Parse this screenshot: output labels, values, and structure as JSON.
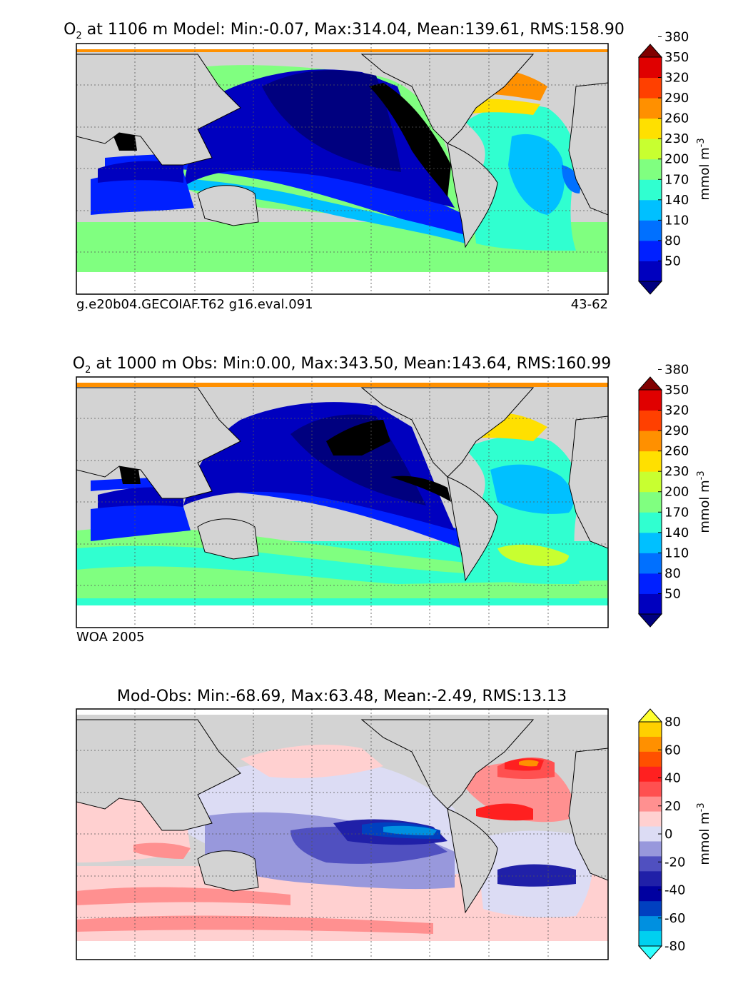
{
  "panels": [
    {
      "title_o": "O",
      "title_sub": "2",
      "title_rest": " at 1106 m Model: Min:-0.07, Max:314.04, Mean:139.61, RMS:158.90",
      "footer_left": "g.e20b04.GECOIAF.T62 g16.eval.091",
      "footer_right": "43-62"
    },
    {
      "title_o": "O",
      "title_sub": "2",
      "title_rest": " at 1000 m Obs: Min:0.00, Max:343.50, Mean:143.64, RMS:160.99",
      "footer_left": "WOA 2005",
      "footer_right": ""
    },
    {
      "title_o": "",
      "title_sub": "",
      "title_rest": "Mod-Obs: Min:-68.69, Max:63.48, Mean:-2.49, RMS:13.13",
      "footer_left": "",
      "footer_right": ""
    }
  ],
  "chart_data": [
    {
      "type": "heatmap",
      "title": "O2 at 1106 m Model: Min:-0.07, Max:314.04, Mean:139.61, RMS:158.90",
      "colorbar": {
        "label": "mmol m^-3",
        "ticks": [
          "50",
          "80",
          "110",
          "140",
          "170",
          "200",
          "230",
          "260",
          "290",
          "320",
          "350",
          "380"
        ],
        "colors": [
          "#00007f",
          "#0000bf",
          "#0020ff",
          "#0070ff",
          "#00c0ff",
          "#30ffd0",
          "#80ff80",
          "#c8ff30",
          "#ffe000",
          "#ff9000",
          "#ff4000",
          "#e00000",
          "#800000"
        ],
        "extend": "both"
      },
      "stats": {
        "min": -0.07,
        "max": 314.04,
        "mean": 139.61,
        "rms": 158.9
      }
    },
    {
      "type": "heatmap",
      "title": "O2 at 1000 m Obs: Min:0.00, Max:343.50, Mean:143.64, RMS:160.99",
      "colorbar": {
        "label": "mmol m^-3",
        "ticks": [
          "50",
          "80",
          "110",
          "140",
          "170",
          "200",
          "230",
          "260",
          "290",
          "320",
          "350",
          "380"
        ],
        "colors": [
          "#00007f",
          "#0000bf",
          "#0020ff",
          "#0070ff",
          "#00c0ff",
          "#30ffd0",
          "#80ff80",
          "#c8ff30",
          "#ffe000",
          "#ff9000",
          "#ff4000",
          "#e00000",
          "#800000"
        ],
        "extend": "both"
      },
      "stats": {
        "min": 0.0,
        "max": 343.5,
        "mean": 143.64,
        "rms": 160.99
      }
    },
    {
      "type": "heatmap",
      "title": "Mod-Obs: Min:-68.69, Max:63.48, Mean:-2.49, RMS:13.13",
      "colorbar": {
        "label": "mmol m^-3",
        "ticks": [
          "80",
          "60",
          "40",
          "20",
          "0",
          "-20",
          "-40",
          "-60",
          "-80"
        ],
        "colors": [
          "#ffff30",
          "#ffd000",
          "#ff9000",
          "#ff5000",
          "#ff2020",
          "#ff5050",
          "#ff9090",
          "#ffd0d0",
          "#dcdcf4",
          "#9898dc",
          "#5050c0",
          "#2020a8",
          "#0000a0",
          "#0040c0",
          "#0090e0",
          "#00d0f0",
          "#30ffff"
        ],
        "extend": "both"
      },
      "stats": {
        "min": -68.69,
        "max": 63.48,
        "mean": -2.49,
        "rms": 13.13
      }
    }
  ]
}
